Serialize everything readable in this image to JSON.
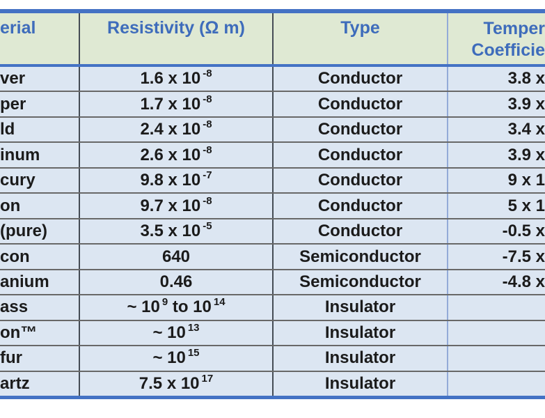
{
  "table": {
    "colors": {
      "header_bg": "#dfe9d3",
      "header_text": "#3e6cbb",
      "body_bg": "#dce6f2",
      "body_text": "#1b1b1b",
      "accent_border": "#4472c4",
      "row_line": "#686868",
      "col_line_dark": "#454c55",
      "col_line_blue": "#93abd8"
    },
    "header": {
      "material": "erial",
      "resistivity": "Resistivity (Ω m)",
      "type": "Type",
      "temp_line1": "Temper",
      "temp_line2": "Coefficie"
    },
    "rows": [
      {
        "material": "ver",
        "resistivity": [
          {
            "t": "1.6 x 10"
          },
          {
            "s": "-8"
          }
        ],
        "type": "Conductor",
        "temp_coeff": "3.8 x"
      },
      {
        "material": "per",
        "resistivity": [
          {
            "t": "1.7 x 10"
          },
          {
            "s": "-8"
          }
        ],
        "type": "Conductor",
        "temp_coeff": "3.9 x"
      },
      {
        "material": "ld",
        "resistivity": [
          {
            "t": "2.4 x 10"
          },
          {
            "s": "-8"
          }
        ],
        "type": "Conductor",
        "temp_coeff": "3.4 x"
      },
      {
        "material": "inum",
        "resistivity": [
          {
            "t": "2.6 x 10"
          },
          {
            "s": "-8"
          }
        ],
        "type": "Conductor",
        "temp_coeff": "3.9 x"
      },
      {
        "material": "cury",
        "resistivity": [
          {
            "t": "9.8 x 10"
          },
          {
            "s": "-7"
          }
        ],
        "type": "Conductor",
        "temp_coeff": "9 x 1"
      },
      {
        "material": "on",
        "resistivity": [
          {
            "t": "9.7 x 10"
          },
          {
            "s": "-8"
          }
        ],
        "type": "Conductor",
        "temp_coeff": "5 x 1"
      },
      {
        "material": "(pure)",
        "resistivity": [
          {
            "t": "3.5 x 10"
          },
          {
            "s": "-5"
          }
        ],
        "type": "Conductor",
        "temp_coeff": "-0.5 x"
      },
      {
        "material": "con",
        "resistivity": [
          {
            "t": "640"
          }
        ],
        "type": "Semiconductor",
        "temp_coeff": "-7.5 x"
      },
      {
        "material": "anium",
        "resistivity": [
          {
            "t": "0.46"
          }
        ],
        "type": "Semiconductor",
        "temp_coeff": "-4.8 x"
      },
      {
        "material": "ass",
        "resistivity": [
          {
            "t": "~ 10"
          },
          {
            "s": "9"
          },
          {
            "t": " to 10"
          },
          {
            "s": "14"
          }
        ],
        "type": "Insulator",
        "temp_coeff": ""
      },
      {
        "material": "on™",
        "resistivity": [
          {
            "t": "~ 10"
          },
          {
            "s": "13"
          }
        ],
        "type": "Insulator",
        "temp_coeff": ""
      },
      {
        "material": "fur",
        "resistivity": [
          {
            "t": "~ 10"
          },
          {
            "s": "15"
          }
        ],
        "type": "Insulator",
        "temp_coeff": ""
      },
      {
        "material": "artz",
        "resistivity": [
          {
            "t": "7.5 x 10"
          },
          {
            "s": "17"
          }
        ],
        "type": "Insulator",
        "temp_coeff": ""
      }
    ]
  },
  "chart_data": {
    "type": "table",
    "columns": [
      "erial",
      "Resistivity (Ω m)",
      "Type",
      "Temper Coefficie"
    ],
    "rows": [
      [
        "ver",
        "1.6 x 10^-8",
        "Conductor",
        "3.8 x"
      ],
      [
        "per",
        "1.7 x 10^-8",
        "Conductor",
        "3.9 x"
      ],
      [
        "ld",
        "2.4 x 10^-8",
        "Conductor",
        "3.4 x"
      ],
      [
        "inum",
        "2.6 x 10^-8",
        "Conductor",
        "3.9 x"
      ],
      [
        "cury",
        "9.8 x 10^-7",
        "Conductor",
        "9 x 1"
      ],
      [
        "on",
        "9.7 x 10^-8",
        "Conductor",
        "5 x 1"
      ],
      [
        "(pure)",
        "3.5 x 10^-5",
        "Conductor",
        "-0.5 x"
      ],
      [
        "con",
        "640",
        "Semiconductor",
        "-7.5 x"
      ],
      [
        "anium",
        "0.46",
        "Semiconductor",
        "-4.8 x"
      ],
      [
        "ass",
        "~ 10^9 to 10^14",
        "Insulator",
        ""
      ],
      [
        "on™",
        "~ 10^13",
        "Insulator",
        ""
      ],
      [
        "fur",
        "~ 10^15",
        "Insulator",
        ""
      ],
      [
        "artz",
        "7.5 x 10^17",
        "Insulator",
        ""
      ]
    ]
  }
}
